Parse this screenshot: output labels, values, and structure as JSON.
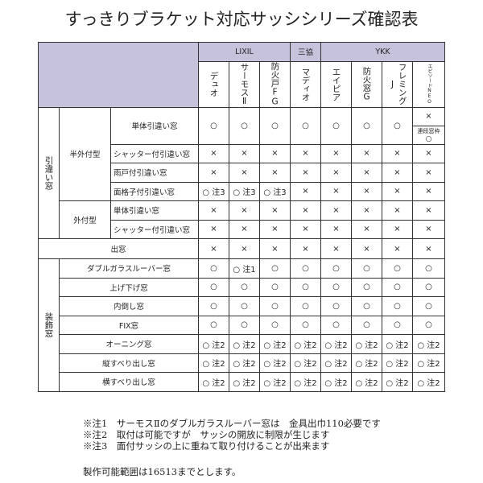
{
  "title": "すっきりブラケット対応サッシシリーズ確認表",
  "makers": [
    {
      "name": "LIXIL",
      "span": 3
    },
    {
      "name": "三協",
      "span": 1
    },
    {
      "name": "YKK",
      "span": 4
    }
  ],
  "series": [
    "デュオ",
    "サーモスⅡ",
    "防火戸FG",
    "マディオ",
    "エイピア",
    "防火窓G",
    "フレミングJ",
    "エピソードNEO"
  ],
  "groups": {
    "hikichigai": "引違い窓",
    "hangaitsuke": "半外付型",
    "sototsuke": "外付型",
    "demado": "出窓",
    "soushoku": "装飾窓"
  },
  "rows": [
    {
      "label": "単体引違い窓",
      "values": [
        "○",
        "○",
        "○",
        "○",
        "○",
        "○",
        "○"
      ],
      "last": {
        "top": "×",
        "note": "連段窓枠",
        "bottom": "○"
      }
    },
    {
      "label": "シャッター付引違い窓",
      "values": [
        "×",
        "×",
        "×",
        "×",
        "×",
        "×",
        "×",
        "×"
      ]
    },
    {
      "label": "雨戸付引違い窓",
      "values": [
        "×",
        "×",
        "×",
        "×",
        "×",
        "×",
        "×",
        "×"
      ]
    },
    {
      "label": "面格子付引違い窓",
      "values": [
        "○ 注3",
        "○ 注3",
        "○ 注3",
        "×",
        "×",
        "×",
        "×",
        "×"
      ]
    },
    {
      "label": "単体引違い窓",
      "values": [
        "×",
        "×",
        "×",
        "×",
        "×",
        "×",
        "×",
        "×"
      ]
    },
    {
      "label": "シャッター付引違い窓",
      "values": [
        "×",
        "×",
        "×",
        "×",
        "×",
        "×",
        "×",
        "×"
      ]
    },
    {
      "label": "出窓",
      "values": [
        "×",
        "×",
        "×",
        "×",
        "×",
        "×",
        "×",
        "×"
      ]
    },
    {
      "label": "ダブルガラスルーバー窓",
      "values": [
        "○",
        "○ 注1",
        "○",
        "○",
        "○",
        "○",
        "○",
        "○"
      ]
    },
    {
      "label": "上げ下げ窓",
      "values": [
        "○",
        "○",
        "○",
        "○",
        "○",
        "○",
        "○",
        "○"
      ]
    },
    {
      "label": "内倒し窓",
      "values": [
        "○",
        "○",
        "○",
        "○",
        "○",
        "○",
        "○",
        "○"
      ]
    },
    {
      "label": "FIX窓",
      "values": [
        "○",
        "○",
        "○",
        "○",
        "○",
        "○",
        "○",
        "○"
      ]
    },
    {
      "label": "オーニング窓",
      "values": [
        "○ 注2",
        "○ 注2",
        "○ 注2",
        "○ 注2",
        "○ 注2",
        "○ 注2",
        "○ 注2",
        "○ 注2"
      ]
    },
    {
      "label": "縦すべり出し窓",
      "values": [
        "○ 注2",
        "○ 注2",
        "○ 注2",
        "○ 注2",
        "○ 注2",
        "○ 注2",
        "○ 注2",
        "○ 注2"
      ]
    },
    {
      "label": "横すべり出し窓",
      "values": [
        "○ 注2",
        "○ 注2",
        "○ 注2",
        "○ 注2",
        "○ 注2",
        "○ 注2",
        "○ 注2",
        "○ 注2"
      ]
    }
  ],
  "notes": [
    "※注1　サーモスⅡのダブルガラスルーバー窓は　金具出巾110必要です",
    "※注2　取付は可能ですが　サッシの開放に制限が生じます",
    "※注3　面付サッシの上に重ねて取り付けることが出来ます"
  ],
  "range": "製作可能範囲は16513までとします。"
}
